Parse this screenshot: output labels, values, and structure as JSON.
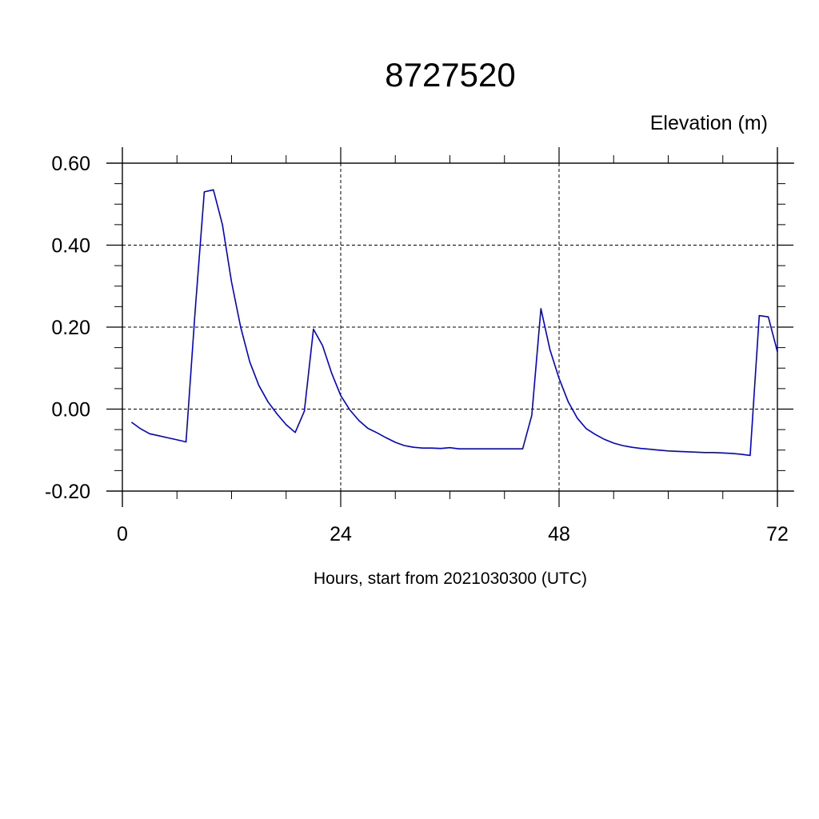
{
  "chart_data": {
    "type": "line",
    "title": "8727520",
    "ylabel": "Elevation (m)",
    "xlabel": "Hours, start from 2021030300 (UTC)",
    "xlim": [
      0,
      72
    ],
    "ylim": [
      -0.2,
      0.6
    ],
    "xticks": [
      0,
      24,
      48,
      72
    ],
    "xtick_labels": [
      "0",
      "24",
      "48",
      "72"
    ],
    "yticks": [
      -0.2,
      0.0,
      0.2,
      0.4,
      0.6
    ],
    "ytick_labels": [
      "-0.20",
      "0.00",
      "0.20",
      "0.40",
      "0.60"
    ],
    "x_minor_step": 6,
    "y_minor_step": 0.05,
    "grid": "dashed",
    "colors": {
      "series": "#0000dd",
      "axis": "#000000"
    },
    "series": [
      {
        "x": [
          1,
          2,
          3,
          4,
          5,
          6,
          7,
          8,
          9,
          10,
          11,
          12,
          13,
          14,
          15,
          16,
          17,
          18,
          19,
          20,
          21,
          22,
          23,
          24,
          25,
          26,
          27,
          28,
          29,
          30,
          31,
          32,
          33,
          34,
          35,
          36,
          37,
          38,
          39,
          40,
          41,
          42,
          43,
          44,
          45,
          46,
          47,
          48,
          49,
          50,
          51,
          52,
          53,
          54,
          55,
          56,
          57,
          58,
          59,
          60,
          61,
          62,
          63,
          64,
          65,
          66,
          67,
          68,
          69,
          70,
          71,
          72
        ],
        "y": [
          -0.032,
          -0.048,
          -0.06,
          -0.065,
          -0.07,
          -0.075,
          -0.08,
          0.24,
          0.53,
          0.535,
          0.45,
          0.31,
          0.2,
          0.115,
          0.058,
          0.018,
          -0.012,
          -0.038,
          -0.057,
          -0.005,
          0.195,
          0.155,
          0.088,
          0.033,
          -0.002,
          -0.028,
          -0.047,
          -0.058,
          -0.07,
          -0.081,
          -0.089,
          -0.093,
          -0.095,
          -0.095,
          -0.096,
          -0.094,
          -0.097,
          -0.097,
          -0.097,
          -0.097,
          -0.097,
          -0.097,
          -0.097,
          -0.097,
          -0.015,
          0.245,
          0.145,
          0.075,
          0.018,
          -0.022,
          -0.048,
          -0.062,
          -0.074,
          -0.083,
          -0.089,
          -0.093,
          -0.096,
          -0.098,
          -0.1,
          -0.102,
          -0.103,
          -0.104,
          -0.105,
          -0.106,
          -0.106,
          -0.107,
          -0.108,
          -0.11,
          -0.113,
          0.228,
          0.225,
          0.14
        ]
      }
    ]
  }
}
